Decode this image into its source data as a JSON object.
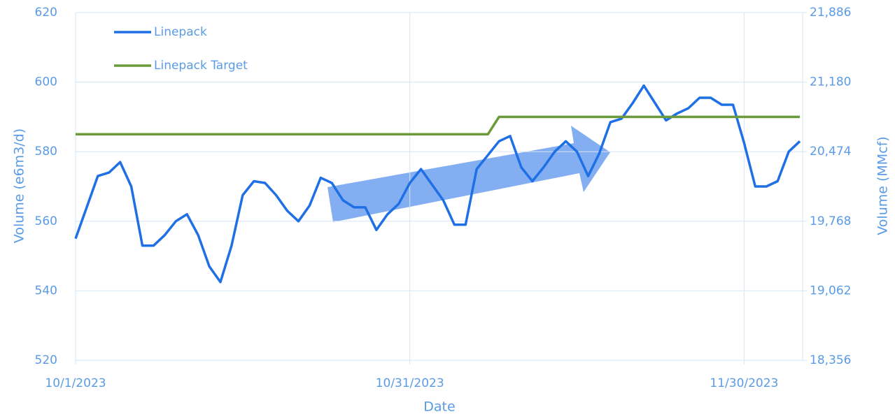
{
  "chart_data": {
    "type": "line",
    "x": [
      "10/1/2023",
      "10/2/2023",
      "10/3/2023",
      "10/4/2023",
      "10/5/2023",
      "10/6/2023",
      "10/7/2023",
      "10/8/2023",
      "10/9/2023",
      "10/10/2023",
      "10/11/2023",
      "10/12/2023",
      "10/13/2023",
      "10/14/2023",
      "10/15/2023",
      "10/16/2023",
      "10/17/2023",
      "10/18/2023",
      "10/19/2023",
      "10/20/2023",
      "10/21/2023",
      "10/22/2023",
      "10/23/2023",
      "10/24/2023",
      "10/25/2023",
      "10/26/2023",
      "10/27/2023",
      "10/28/2023",
      "10/29/2023",
      "10/30/2023",
      "10/31/2023",
      "11/1/2023",
      "11/2/2023",
      "11/3/2023",
      "11/4/2023",
      "11/5/2023",
      "11/6/2023",
      "11/7/2023",
      "11/8/2023",
      "11/9/2023",
      "11/10/2023",
      "11/11/2023",
      "11/12/2023",
      "11/13/2023",
      "11/14/2023",
      "11/15/2023",
      "11/16/2023",
      "11/17/2023",
      "11/18/2023",
      "11/19/2023",
      "11/20/2023",
      "11/21/2023",
      "11/22/2023",
      "11/23/2023",
      "11/24/2023",
      "11/25/2023",
      "11/26/2023",
      "11/27/2023",
      "11/28/2023",
      "11/29/2023",
      "11/30/2023",
      "12/1/2023",
      "12/2/2023",
      "12/3/2023",
      "12/4/2023",
      "12/5/2023"
    ],
    "xticks": [
      "10/1/2023",
      "10/31/2023",
      "11/30/2023"
    ],
    "xlabel": "Date",
    "ylabel": "Volume (e6m3/d)",
    "y2label": "Volume (MMcf)",
    "ylim": [
      520,
      620
    ],
    "yticks": [
      520,
      540,
      560,
      580,
      600,
      620
    ],
    "y2lim": [
      18356,
      21886
    ],
    "y2ticks": [
      {
        "value": 18356,
        "label": "18,356"
      },
      {
        "value": 19062,
        "label": "19,062"
      },
      {
        "value": 19768,
        "label": "19,768"
      },
      {
        "value": 20474,
        "label": "20,474"
      },
      {
        "value": 21180,
        "label": "21,180"
      },
      {
        "value": 21886,
        "label": "21,886"
      }
    ],
    "grid": true,
    "legend": "top-left",
    "series": [
      {
        "name": "Linepack",
        "color": "#1f6fe5",
        "values": [
          555,
          564,
          573,
          574,
          577,
          570,
          553,
          553,
          556,
          560,
          562,
          556,
          547,
          542.5,
          553,
          567.5,
          571.5,
          571,
          567.5,
          563,
          560,
          564.5,
          572.5,
          571,
          566,
          564,
          564,
          557.5,
          562,
          565,
          571,
          575,
          570.5,
          566,
          559,
          559,
          575,
          579,
          583,
          584.5,
          575.5,
          571.5,
          575.5,
          580,
          583,
          580,
          573,
          579.5,
          588.5,
          589.5,
          594,
          599,
          594,
          589,
          591,
          592.5,
          595.5,
          595.5,
          593.5,
          593.5,
          582.5,
          570,
          570,
          571.5,
          580,
          583
        ]
      },
      {
        "name": "Linepack Target",
        "color": "#6b9a3a",
        "values": [
          585,
          585,
          585,
          585,
          585,
          585,
          585,
          585,
          585,
          585,
          585,
          585,
          585,
          585,
          585,
          585,
          585,
          585,
          585,
          585,
          585,
          585,
          585,
          585,
          585,
          585,
          585,
          585,
          585,
          585,
          585,
          585,
          585,
          585,
          585,
          585,
          585,
          585,
          590,
          590,
          590,
          590,
          590,
          590,
          590,
          590,
          590,
          590,
          590,
          590,
          590,
          590,
          590,
          590,
          590,
          590,
          590,
          590,
          590,
          590,
          590,
          590,
          590,
          590,
          590,
          590
        ]
      }
    ]
  }
}
